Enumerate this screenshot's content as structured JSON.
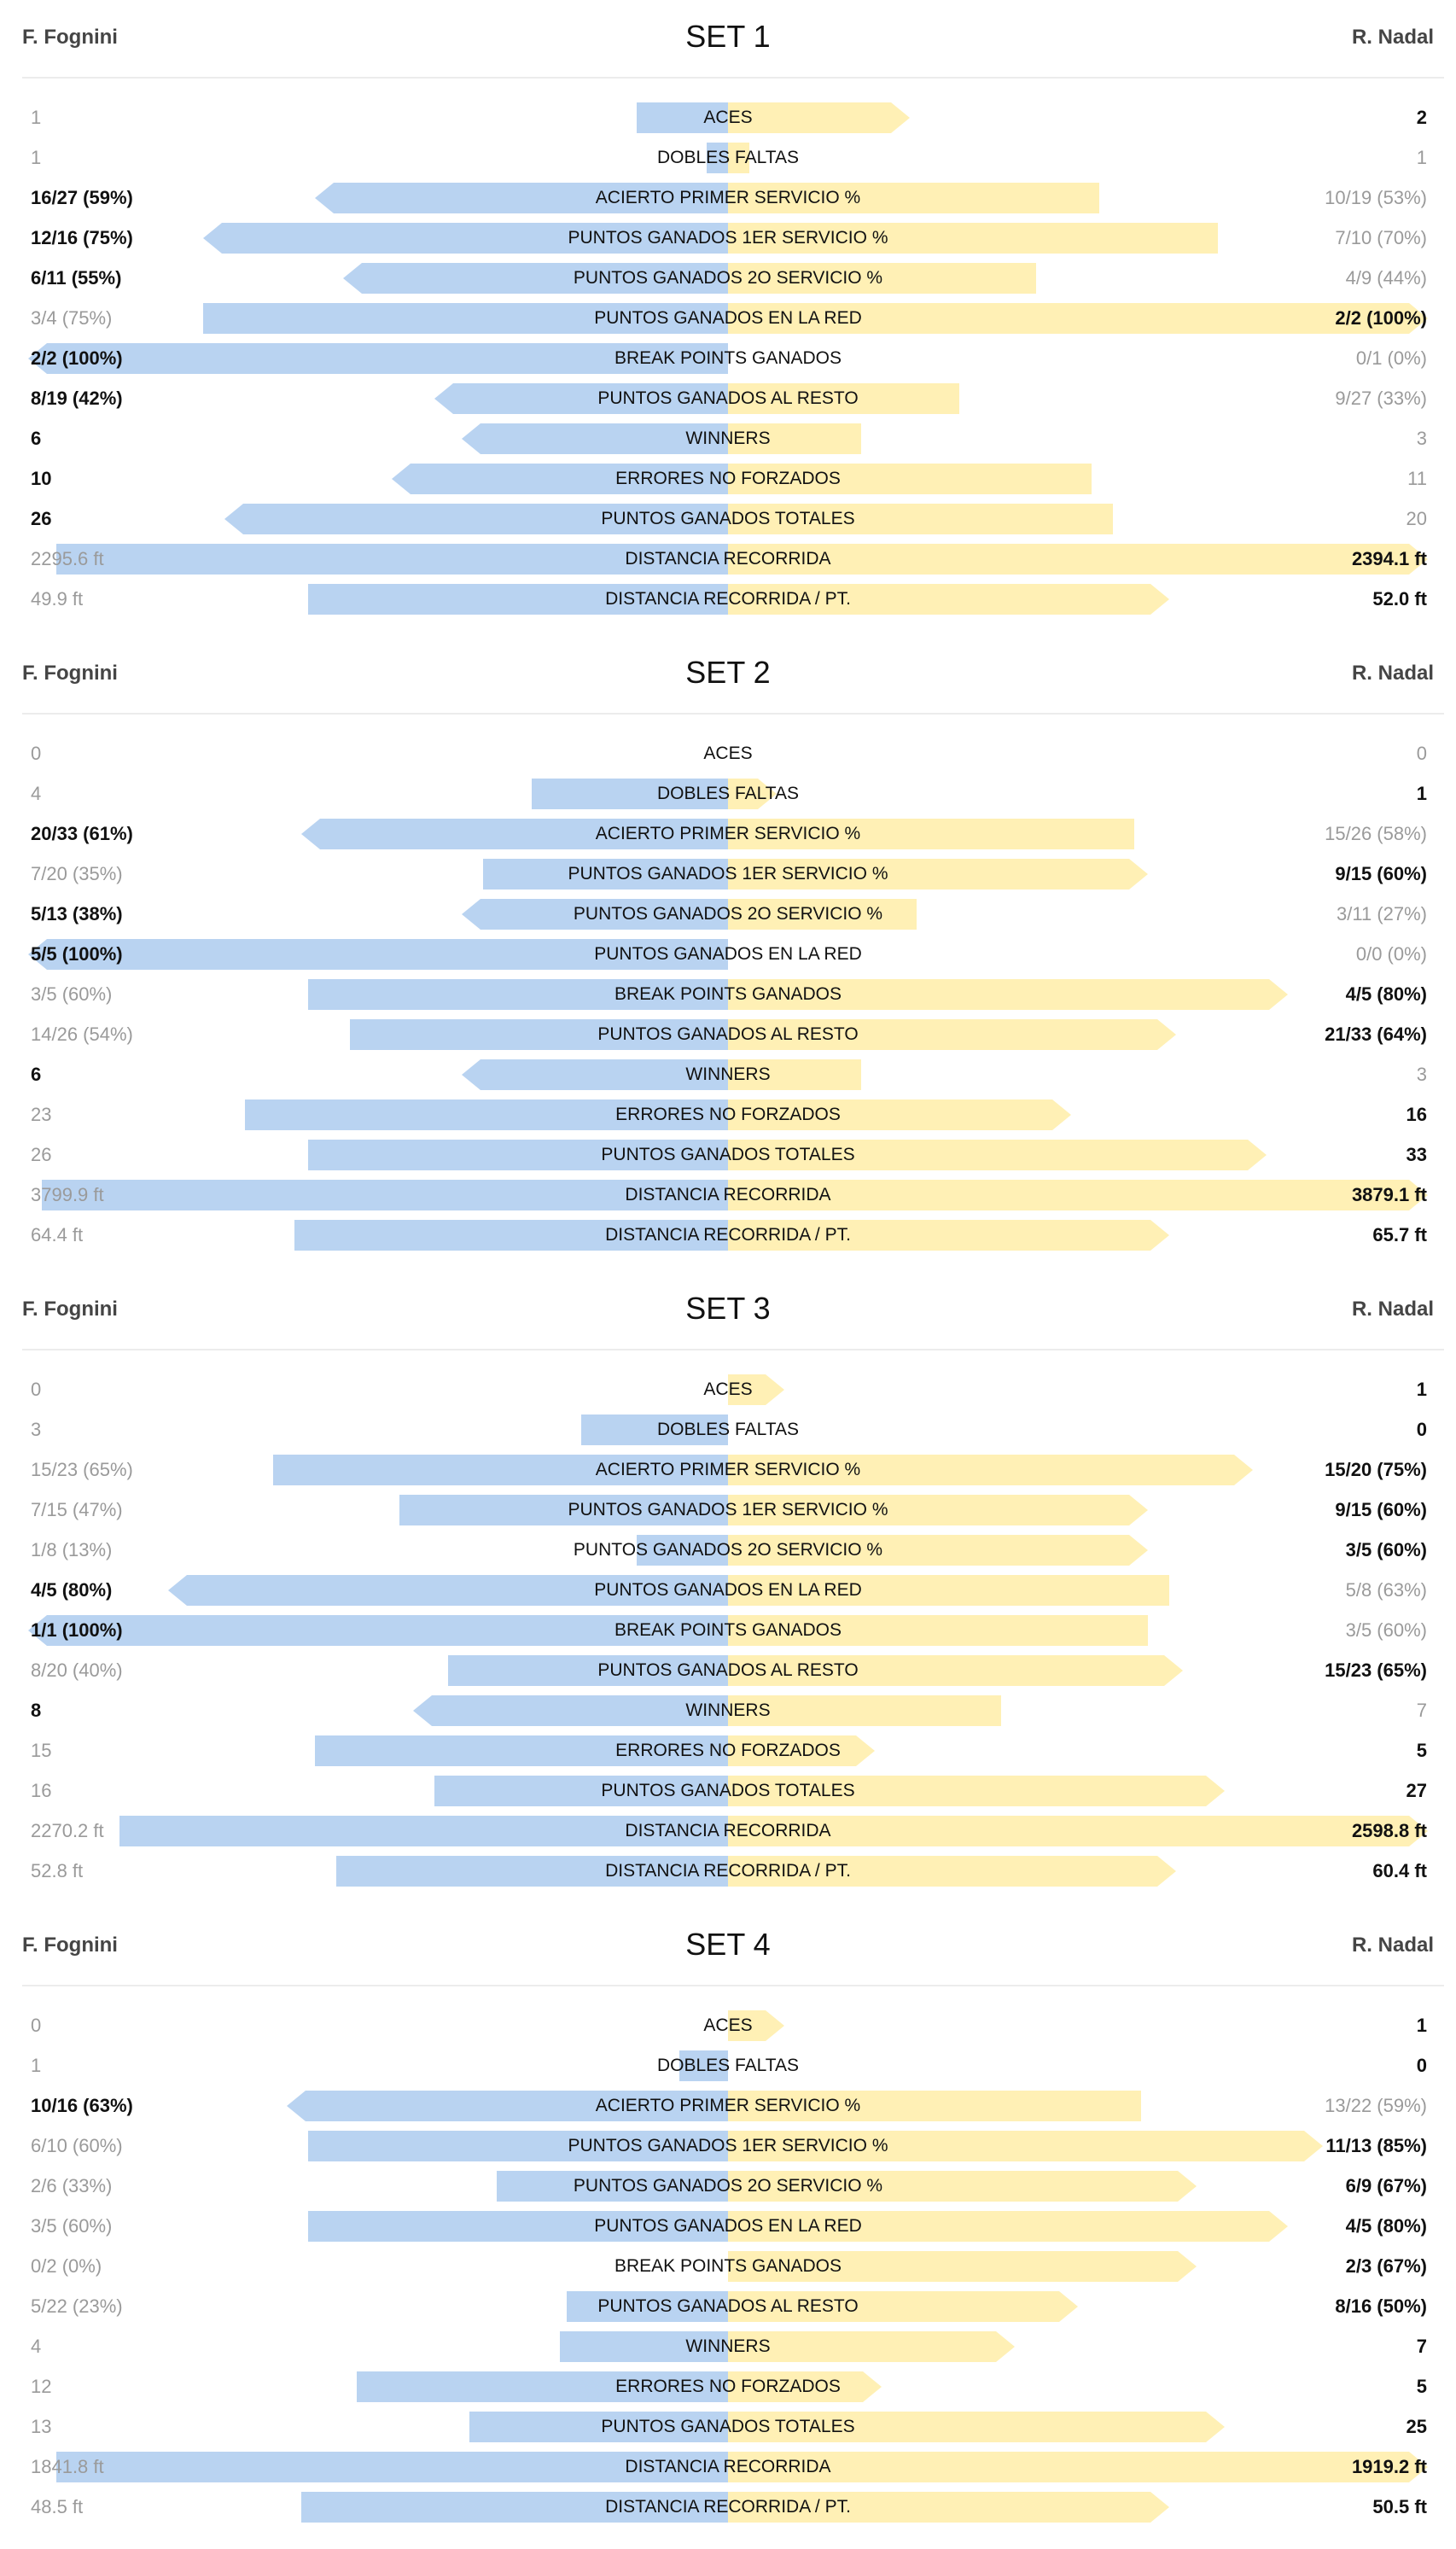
{
  "players": {
    "left": "F. Fognini",
    "right": "R. Nadal"
  },
  "sets": [
    {
      "title": "SET 1",
      "stats": [
        {
          "label": "ACES",
          "left": "1",
          "right": "2",
          "win": "right",
          "left_fraction": 0.13,
          "right_fraction": 0.26
        },
        {
          "label": "DOBLES FALTAS",
          "left": "1",
          "right": "1",
          "win": "none",
          "left_fraction": 0.03,
          "right_fraction": 0.03
        },
        {
          "label": "ACIERTO PRIMER SERVICIO %",
          "left": "16/27 (59%)",
          "right": "10/19 (53%)",
          "win": "left",
          "left_fraction": 0.59,
          "right_fraction": 0.53
        },
        {
          "label": "PUNTOS GANADOS 1ER SERVICIO %",
          "left": "12/16 (75%)",
          "right": "7/10 (70%)",
          "win": "left",
          "left_fraction": 0.75,
          "right_fraction": 0.7
        },
        {
          "label": "PUNTOS GANADOS 2O SERVICIO %",
          "left": "6/11 (55%)",
          "right": "4/9 (44%)",
          "win": "left",
          "left_fraction": 0.55,
          "right_fraction": 0.44
        },
        {
          "label": "PUNTOS GANADOS EN LA RED",
          "left": "3/4 (75%)",
          "right": "2/2 (100%)",
          "win": "right",
          "left_fraction": 0.75,
          "right_fraction": 1.0
        },
        {
          "label": "BREAK POINTS GANADOS",
          "left": "2/2 (100%)",
          "right": "0/1 (0%)",
          "win": "left",
          "left_fraction": 1.0,
          "right_fraction": 0.0
        },
        {
          "label": "PUNTOS GANADOS AL RESTO",
          "left": "8/19 (42%)",
          "right": "9/27 (33%)",
          "win": "left",
          "left_fraction": 0.42,
          "right_fraction": 0.33
        },
        {
          "label": "WINNERS",
          "left": "6",
          "right": "3",
          "win": "left",
          "left_fraction": 0.38,
          "right_fraction": 0.19
        },
        {
          "label": "ERRORES NO FORZADOS",
          "left": "10",
          "right": "11",
          "win": "left",
          "left_fraction": 0.48,
          "right_fraction": 0.52
        },
        {
          "label": "PUNTOS GANADOS TOTALES",
          "left": "26",
          "right": "20",
          "win": "left",
          "left_fraction": 0.72,
          "right_fraction": 0.55
        },
        {
          "label": "DISTANCIA RECORRIDA",
          "left": "2295.6 ft",
          "right": "2394.1 ft",
          "win": "right",
          "left_fraction": 0.96,
          "right_fraction": 1.0
        },
        {
          "label": "DISTANCIA RECORRIDA / PT.",
          "left": "49.9 ft",
          "right": "52.0 ft",
          "win": "right",
          "left_fraction": 0.6,
          "right_fraction": 0.63
        }
      ]
    },
    {
      "title": "SET 2",
      "stats": [
        {
          "label": "ACES",
          "left": "0",
          "right": "0",
          "win": "none",
          "left_fraction": 0.0,
          "right_fraction": 0.0
        },
        {
          "label": "DOBLES FALTAS",
          "left": "4",
          "right": "1",
          "win": "right",
          "left_fraction": 0.28,
          "right_fraction": 0.07
        },
        {
          "label": "ACIERTO PRIMER SERVICIO %",
          "left": "20/33 (61%)",
          "right": "15/26 (58%)",
          "win": "left",
          "left_fraction": 0.61,
          "right_fraction": 0.58
        },
        {
          "label": "PUNTOS GANADOS 1ER SERVICIO %",
          "left": "7/20 (35%)",
          "right": "9/15 (60%)",
          "win": "right",
          "left_fraction": 0.35,
          "right_fraction": 0.6
        },
        {
          "label": "PUNTOS GANADOS 2O SERVICIO %",
          "left": "5/13 (38%)",
          "right": "3/11 (27%)",
          "win": "left",
          "left_fraction": 0.38,
          "right_fraction": 0.27
        },
        {
          "label": "PUNTOS GANADOS EN LA RED",
          "left": "5/5 (100%)",
          "right": "0/0 (0%)",
          "win": "left",
          "left_fraction": 1.0,
          "right_fraction": 0.0
        },
        {
          "label": "BREAK POINTS GANADOS",
          "left": "3/5 (60%)",
          "right": "4/5 (80%)",
          "win": "right",
          "left_fraction": 0.6,
          "right_fraction": 0.8
        },
        {
          "label": "PUNTOS GANADOS AL RESTO",
          "left": "14/26 (54%)",
          "right": "21/33 (64%)",
          "win": "right",
          "left_fraction": 0.54,
          "right_fraction": 0.64
        },
        {
          "label": "WINNERS",
          "left": "6",
          "right": "3",
          "win": "left",
          "left_fraction": 0.38,
          "right_fraction": 0.19
        },
        {
          "label": "ERRORES NO FORZADOS",
          "left": "23",
          "right": "16",
          "win": "right",
          "left_fraction": 0.69,
          "right_fraction": 0.49
        },
        {
          "label": "PUNTOS GANADOS TOTALES",
          "left": "26",
          "right": "33",
          "win": "right",
          "left_fraction": 0.6,
          "right_fraction": 0.77
        },
        {
          "label": "DISTANCIA RECORRIDA",
          "left": "3799.9 ft",
          "right": "3879.1 ft",
          "win": "right",
          "left_fraction": 0.98,
          "right_fraction": 1.0
        },
        {
          "label": "DISTANCIA RECORRIDA / PT.",
          "left": "64.4 ft",
          "right": "65.7 ft",
          "win": "right",
          "left_fraction": 0.62,
          "right_fraction": 0.63
        }
      ]
    },
    {
      "title": "SET 3",
      "stats": [
        {
          "label": "ACES",
          "left": "0",
          "right": "1",
          "win": "right",
          "left_fraction": 0.0,
          "right_fraction": 0.08
        },
        {
          "label": "DOBLES FALTAS",
          "left": "3",
          "right": "0",
          "win": "right",
          "left_fraction": 0.21,
          "right_fraction": 0.0
        },
        {
          "label": "ACIERTO PRIMER SERVICIO %",
          "left": "15/23 (65%)",
          "right": "15/20 (75%)",
          "win": "right",
          "left_fraction": 0.65,
          "right_fraction": 0.75
        },
        {
          "label": "PUNTOS GANADOS 1ER SERVICIO %",
          "left": "7/15 (47%)",
          "right": "9/15 (60%)",
          "win": "right",
          "left_fraction": 0.47,
          "right_fraction": 0.6
        },
        {
          "label": "PUNTOS GANADOS 2O SERVICIO %",
          "left": "1/8 (13%)",
          "right": "3/5 (60%)",
          "win": "right",
          "left_fraction": 0.13,
          "right_fraction": 0.6
        },
        {
          "label": "PUNTOS GANADOS EN LA RED",
          "left": "4/5 (80%)",
          "right": "5/8 (63%)",
          "win": "left",
          "left_fraction": 0.8,
          "right_fraction": 0.63
        },
        {
          "label": "BREAK POINTS GANADOS",
          "left": "1/1 (100%)",
          "right": "3/5 (60%)",
          "win": "left",
          "left_fraction": 1.0,
          "right_fraction": 0.6
        },
        {
          "label": "PUNTOS GANADOS AL RESTO",
          "left": "8/20 (40%)",
          "right": "15/23 (65%)",
          "win": "right",
          "left_fraction": 0.4,
          "right_fraction": 0.65
        },
        {
          "label": "WINNERS",
          "left": "8",
          "right": "7",
          "win": "left",
          "left_fraction": 0.45,
          "right_fraction": 0.39
        },
        {
          "label": "ERRORES NO FORZADOS",
          "left": "15",
          "right": "5",
          "win": "right",
          "left_fraction": 0.59,
          "right_fraction": 0.21
        },
        {
          "label": "PUNTOS GANADOS TOTALES",
          "left": "16",
          "right": "27",
          "win": "right",
          "left_fraction": 0.42,
          "right_fraction": 0.71
        },
        {
          "label": "DISTANCIA RECORRIDA",
          "left": "2270.2 ft",
          "right": "2598.8 ft",
          "win": "right",
          "left_fraction": 0.87,
          "right_fraction": 1.0
        },
        {
          "label": "DISTANCIA RECORRIDA / PT.",
          "left": "52.8 ft",
          "right": "60.4 ft",
          "win": "right",
          "left_fraction": 0.56,
          "right_fraction": 0.64
        }
      ]
    },
    {
      "title": "SET 4",
      "stats": [
        {
          "label": "ACES",
          "left": "0",
          "right": "1",
          "win": "right",
          "left_fraction": 0.0,
          "right_fraction": 0.08
        },
        {
          "label": "DOBLES FALTAS",
          "left": "1",
          "right": "0",
          "win": "right",
          "left_fraction": 0.07,
          "right_fraction": 0.0
        },
        {
          "label": "ACIERTO PRIMER SERVICIO %",
          "left": "10/16 (63%)",
          "right": "13/22 (59%)",
          "win": "left",
          "left_fraction": 0.63,
          "right_fraction": 0.59
        },
        {
          "label": "PUNTOS GANADOS 1ER SERVICIO %",
          "left": "6/10 (60%)",
          "right": "11/13 (85%)",
          "win": "right",
          "left_fraction": 0.6,
          "right_fraction": 0.85
        },
        {
          "label": "PUNTOS GANADOS 2O SERVICIO %",
          "left": "2/6 (33%)",
          "right": "6/9 (67%)",
          "win": "right",
          "left_fraction": 0.33,
          "right_fraction": 0.67
        },
        {
          "label": "PUNTOS GANADOS EN LA RED",
          "left": "3/5 (60%)",
          "right": "4/5 (80%)",
          "win": "right",
          "left_fraction": 0.6,
          "right_fraction": 0.8
        },
        {
          "label": "BREAK POINTS GANADOS",
          "left": "0/2 (0%)",
          "right": "2/3 (67%)",
          "win": "right",
          "left_fraction": 0.0,
          "right_fraction": 0.67
        },
        {
          "label": "PUNTOS GANADOS AL RESTO",
          "left": "5/22 (23%)",
          "right": "8/16 (50%)",
          "win": "right",
          "left_fraction": 0.23,
          "right_fraction": 0.5
        },
        {
          "label": "WINNERS",
          "left": "4",
          "right": "7",
          "win": "right",
          "left_fraction": 0.24,
          "right_fraction": 0.41
        },
        {
          "label": "ERRORES NO FORZADOS",
          "left": "12",
          "right": "5",
          "win": "right",
          "left_fraction": 0.53,
          "right_fraction": 0.22
        },
        {
          "label": "PUNTOS GANADOS TOTALES",
          "left": "13",
          "right": "25",
          "win": "right",
          "left_fraction": 0.37,
          "right_fraction": 0.71
        },
        {
          "label": "DISTANCIA RECORRIDA",
          "left": "1841.8 ft",
          "right": "1919.2 ft",
          "win": "right",
          "left_fraction": 0.96,
          "right_fraction": 1.0
        },
        {
          "label": "DISTANCIA RECORRIDA / PT.",
          "left": "48.5 ft",
          "right": "50.5 ft",
          "win": "right",
          "left_fraction": 0.61,
          "right_fraction": 0.63
        }
      ]
    }
  ]
}
